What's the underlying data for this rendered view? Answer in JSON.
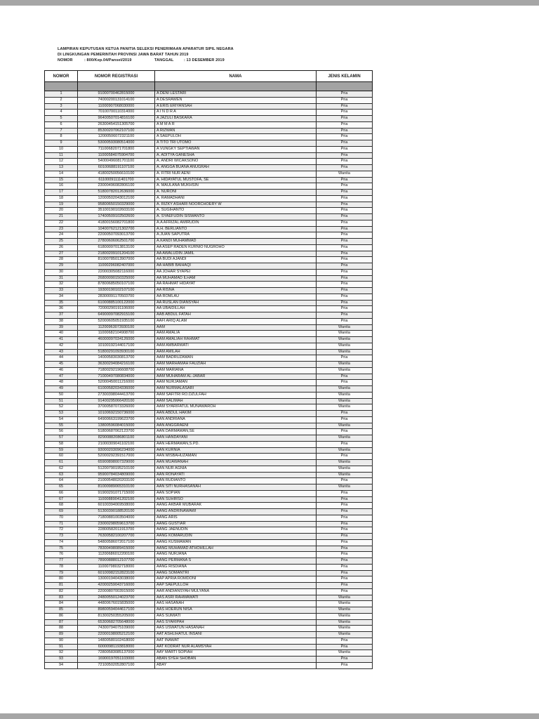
{
  "header": {
    "line1": "LAMPIRAN KEPUTUSAN KETUA PANITIA SELEKSI PENERIMAAN APARATUR SIPIL NEGARA",
    "line2": "DI LINGKUNGAN PEMERINTAH PROVINSI JAWA BARAT TAHUN 2019",
    "nomor_label": "NOMOR",
    "nomor_value": ":   800/Kep.04/Pansel/2019",
    "tanggal_label": "TANGGAL",
    "tanggal_value": ":   13 DESEMBER 2019"
  },
  "table": {
    "columns": [
      "NOMOR",
      "NOMOR REGISTRASI",
      "NAMA",
      "JENIS KELAMIN"
    ],
    "rows": [
      [
        "1",
        "91000700462815000",
        "A DENI LESTARI",
        "Pria"
      ],
      [
        "2",
        "74000200131014100",
        "A DESRAWEN",
        "Pria"
      ],
      [
        "3",
        "11000907068030000",
        "A ERIS ERIYANSAH",
        "Pria"
      ],
      [
        "4",
        "70100700110314000",
        "A I N D R A",
        "Pria"
      ],
      [
        "5",
        "96400507014816100",
        "A JAZULI BASKARA",
        "Pria"
      ],
      [
        "6",
        "26300454151305700",
        "A M M A R",
        "Pria"
      ],
      [
        "7",
        "85300207062107100",
        "A RIZWAN",
        "Pria"
      ],
      [
        "8",
        "12000506072321100",
        "A SAEPULOH",
        "Pria"
      ],
      [
        "9",
        "53000593080514000",
        "A TITO TRI UTOMO",
        "Pria"
      ],
      [
        "10",
        "71100682071701800",
        "A VUNGKY SEPTIAWAN",
        "Pria"
      ],
      [
        "11",
        "11000584075904700",
        "A. ADITYA GANESHA",
        "Pria"
      ],
      [
        "12",
        "54000496081701100",
        "A. ANDRI WICAKSONO",
        "Pria"
      ],
      [
        "13",
        "60100688191107100",
        "A. ANGGA BUANA ANUGRAH",
        "Pria"
      ],
      [
        "14",
        "41800250056610100",
        "A. FITRI NUR AENI",
        "Wanita"
      ],
      [
        "15",
        "61100091111401700",
        "A. HIDAYATUL MUSTOFA, SE",
        "Pria"
      ],
      [
        "16",
        "23000496082806100",
        "A. MAULANA MUKHSIN",
        "Pria"
      ],
      [
        "17",
        "51800782012636000",
        "A. NURONI",
        "Pria"
      ],
      [
        "18",
        "12000502043012100",
        "A. RAMADHANI",
        "Pria"
      ],
      [
        "19",
        "95800650150329000",
        "A. RIZKY ASHARI NOORCHOERY W",
        "Pria"
      ],
      [
        "20",
        "35100190102603100",
        "A. SUGIHANTO",
        "Pria"
      ],
      [
        "21",
        "17400509102502600",
        "A. SYAEFUDIN SISWANTO",
        "Pria"
      ],
      [
        "22",
        "41800156082701800",
        "A.A AFRIZAL AMIRUDIN",
        "Pria"
      ],
      [
        "23",
        "10400762121302700",
        "A.H. BERLIANTO",
        "Pria"
      ],
      [
        "24",
        "22000507093013700",
        "A.JUAN SAPUTRA",
        "Pria"
      ],
      [
        "25",
        "27800606062501700",
        "A.KANDI MUHAMMAD",
        "Pria"
      ],
      [
        "26",
        "61800097013813100",
        "AA ASEP RADEN KURNIO NUGROHO",
        "Pria"
      ],
      [
        "27",
        "21800209101204100",
        "AA AWALUDIN JAMIL",
        "Pria"
      ],
      [
        "28",
        "81000785013907000",
        "AA BUDI AJANDI",
        "Pria"
      ],
      [
        "29",
        "11000296082407000",
        "AA HABIB BAIHAQI",
        "Pria"
      ],
      [
        "30",
        "22000305082116000",
        "AA JOHAR SYAPEI",
        "Pria"
      ],
      [
        "31",
        "26800090150325000",
        "AA MUHAMAD ILHAM",
        "Pria"
      ],
      [
        "32",
        "87800685050107100",
        "AA RAHMAT HIDAYAT",
        "Pria"
      ],
      [
        "33",
        "19300190102107100",
        "AA RISNA",
        "Pria"
      ],
      [
        "34",
        "28300091170503700",
        "AA ROMLAU",
        "Pria"
      ],
      [
        "35",
        "61000885100122000",
        "AA RUSLAN DIANSYAH",
        "Pria"
      ],
      [
        "36",
        "72000290191106000",
        "AA UBAIDILLAH",
        "Pria"
      ],
      [
        "37",
        "64900097082915100",
        "AAB ABDUL FATAH",
        "Pria"
      ],
      [
        "38",
        "52000605051935100",
        "AAFI ARIQ ALAM",
        "Pria"
      ],
      [
        "39",
        "11200963073930100",
        "AAM",
        "Wanita"
      ],
      [
        "40",
        "11000682104908700",
        "AAM AMALIA",
        "Wanita"
      ],
      [
        "41",
        "46000097034126000",
        "AAM AMALIAH RAHMAT",
        "Wanita"
      ],
      [
        "42",
        "10100192144017100",
        "AAM AMBARWATI",
        "Wanita"
      ],
      [
        "43",
        "51800291093930100",
        "AAM AMILAH",
        "Wanita"
      ],
      [
        "44",
        "14000583030813700",
        "AAM BADRUZAMAN",
        "Pria"
      ],
      [
        "45",
        "36300294084216100",
        "AAM MARHAMAH FAUZIAH",
        "Wanita"
      ],
      [
        "46",
        "71800292196608700",
        "AAM MARIANA",
        "Wanita"
      ],
      [
        "47",
        "71000497080834000",
        "AAM MUHARAM AL-JABAR",
        "Pria"
      ],
      [
        "48",
        "52000450011216000",
        "AAM NURJAMAN",
        "Pria"
      ],
      [
        "49",
        "61000582034336000",
        "AAM NURMALASARI",
        "Wanita"
      ],
      [
        "50",
        "27300398044413700",
        "AAM SAFITRI RO.DZULFAH",
        "Wanita"
      ],
      [
        "51",
        "91400295066420100",
        "AAM SALIMAH",
        "Wanita"
      ],
      [
        "52",
        "37000587073326000",
        "AAM SYARIFATUL MUNAWAROH",
        "Wanita"
      ],
      [
        "53",
        "10100692150736000",
        "AAN ABDUL HAKIM",
        "Pria"
      ],
      [
        "54",
        "64900663199623700",
        "AAN ANDRIANA",
        "Pria"
      ],
      [
        "55",
        "13800596084015000",
        "AAN ANGGRAENI",
        "Wanita"
      ],
      [
        "56",
        "51800687062123700",
        "AAN DARMAWAN,SE",
        "Pria"
      ],
      [
        "57",
        "82900882086801100",
        "AAN HANDAYANI",
        "Wanita"
      ],
      [
        "58",
        "21000309041102100",
        "AAN HERMAWAN,S.PD.",
        "Pria"
      ],
      [
        "59",
        "93000203096234000",
        "AAN KURNIA",
        "Wanita"
      ],
      [
        "60",
        "52000292391517000",
        "AAN MISBAHUZAMAN",
        "Pria"
      ],
      [
        "61",
        "65900898007329000",
        "AAN MUAWANAH",
        "Wanita"
      ],
      [
        "62",
        "51200790195210100",
        "AAN NUR AGNIA",
        "Wanita"
      ],
      [
        "63",
        "95900784034809000",
        "AAN RONAYATI",
        "Wanita"
      ],
      [
        "64",
        "21000548020203100",
        "AAN RUDIANTO",
        "Pria"
      ],
      [
        "65",
        "81000989065310100",
        "AAN SITI NURHASANAH",
        "Wanita"
      ],
      [
        "66",
        "91900291071715000",
        "AAN SOPIAN",
        "Pria"
      ],
      [
        "67",
        "11000889041202100",
        "AAN SUHIRSO",
        "Pria"
      ],
      [
        "68",
        "60100394069508000",
        "AANG AKBAR MUBARAK",
        "Pria"
      ],
      [
        "69",
        "51300390188520100",
        "AANG ANDRINAWAWI",
        "Pria"
      ],
      [
        "70",
        "71800881003504000",
        "AANG ARIS",
        "Pria"
      ],
      [
        "71",
        "23000298059613700",
        "AANG GUSTIAR",
        "Pria"
      ],
      [
        "72",
        "22800582011913700",
        "AANG JAENUDIN",
        "Pria"
      ],
      [
        "73",
        "76300582100207700",
        "AANG KOMARUDIN",
        "Pria"
      ],
      [
        "74",
        "54800586072017100",
        "AANG KUSMAWAN",
        "Pria"
      ],
      [
        "75",
        "78300498089415000",
        "AANG MUHAMAD ATHOHILLAH",
        "Pria"
      ],
      [
        "76",
        "11200686012200100",
        "AANG NURJANA",
        "Pria"
      ],
      [
        "77",
        "78900888012107700",
        "AANG PERMANA S",
        "Pria"
      ],
      [
        "78",
        "11000798032718000",
        "AANG RISDIANA",
        "Pria"
      ],
      [
        "79",
        "60100982152823100",
        "AANG SOMANTRI",
        "Pria"
      ],
      [
        "80",
        "13000194043038000",
        "AAP APRIA ROMDONI",
        "Pria"
      ],
      [
        "81",
        "42000259043716000",
        "AAP SAEPULLOH",
        "Pria"
      ],
      [
        "82",
        "22000807003915000",
        "AAR ANDIANSYAH MULYANA",
        "Pria"
      ],
      [
        "83",
        "24800550124023700",
        "AAS ASRI RAHMAWATI",
        "Wanita"
      ],
      [
        "84",
        "44800676015835000",
        "AAS HASANAH",
        "Wanita"
      ],
      [
        "85",
        "89800594044617100",
        "AAS HOERUN NISA",
        "Wanita"
      ],
      [
        "86",
        "81300250355205000",
        "AAS SUMIATI",
        "Wanita"
      ],
      [
        "87",
        "65300682705648000",
        "AAS SYARIPAH",
        "Wanita"
      ],
      [
        "88",
        "74300794075109000",
        "AAS USWATUN HASANAH",
        "Wanita"
      ],
      [
        "89",
        "22000198005212100",
        "AAT ASHLIHATUL INSANI",
        "Wanita"
      ],
      [
        "90",
        "14800580102418000",
        "AAT INAWAT",
        "Pria"
      ],
      [
        "91",
        "60000981193818000",
        "AAT KODRAT NUR ALAMSYAH",
        "Pria"
      ],
      [
        "92",
        "72800583085137000",
        "AAY MARTI SOPIAH",
        "Wanita"
      ],
      [
        "93",
        "16900197051103000",
        "ABAN SYEH SHOBAN",
        "Pria"
      ],
      [
        "94",
        "72100502052807100",
        "ABAY",
        "Pria"
      ]
    ]
  }
}
